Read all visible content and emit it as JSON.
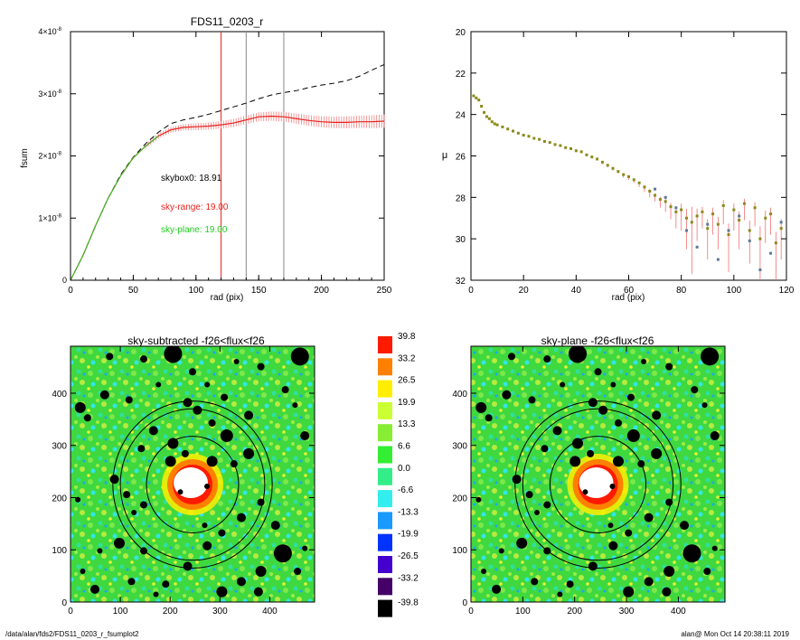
{
  "chart_data": [
    {
      "type": "line",
      "title": "FDS11_0203_r",
      "xlabel": "rad (pix)",
      "ylabel": "fsum",
      "xlim": [
        0,
        250
      ],
      "ylim": [
        0,
        4e-08
      ],
      "xticks": [
        "0",
        "50",
        "100",
        "150",
        "200",
        "250"
      ],
      "yticks": [
        {
          "base": "0",
          "exp": ""
        },
        {
          "base": "1×10",
          "exp": "-8"
        },
        {
          "base": "2×10",
          "exp": "-8"
        },
        {
          "base": "3×10",
          "exp": "-8"
        },
        {
          "base": "4×10",
          "exp": "-8"
        }
      ],
      "annotations": [
        {
          "text": "skybox0: 18.91",
          "color": "#000000"
        },
        {
          "text": "sky-range: 19.00",
          "color": "#e8231e"
        },
        {
          "text": "sky-plane: 19.00",
          "color": "#22cc22"
        }
      ],
      "vlines": [
        {
          "x": 120,
          "color": "#e8231e"
        },
        {
          "x": 140,
          "color": "#888888"
        },
        {
          "x": 170,
          "color": "#888888"
        }
      ],
      "series": [
        {
          "style": "dashed",
          "x": [
            0,
            10,
            20,
            30,
            40,
            50,
            60,
            70,
            80,
            90,
            100,
            110,
            120,
            130,
            140,
            150,
            160,
            170,
            180,
            190,
            200,
            210,
            220,
            230,
            240,
            250
          ],
          "y": [
            0,
            4e-09,
            8.8e-09,
            1.32e-08,
            1.7e-08,
            1.98e-08,
            2.2e-08,
            2.38e-08,
            2.52e-08,
            2.58e-08,
            2.62e-08,
            2.67e-08,
            2.73e-08,
            2.79e-08,
            2.85e-08,
            2.92e-08,
            2.98e-08,
            3.02e-08,
            3.05e-08,
            3.1e-08,
            3.14e-08,
            3.17e-08,
            3.21e-08,
            3.28e-08,
            3.38e-08,
            3.47e-08
          ]
        },
        {
          "style": "errorband",
          "color": "#e8231e",
          "x": [
            0,
            10,
            20,
            30,
            40,
            50,
            60,
            70,
            80,
            90,
            100,
            110,
            120,
            130,
            140,
            150,
            160,
            170,
            180,
            190,
            200,
            210,
            220,
            230,
            240,
            250
          ],
          "y": [
            0,
            4e-09,
            8.8e-09,
            1.32e-08,
            1.68e-08,
            1.97e-08,
            2.16e-08,
            2.32e-08,
            2.42e-08,
            2.46e-08,
            2.47e-08,
            2.48e-08,
            2.5e-08,
            2.53e-08,
            2.58e-08,
            2.63e-08,
            2.64e-08,
            2.63e-08,
            2.6e-08,
            2.57e-08,
            2.55e-08,
            2.54e-08,
            2.54e-08,
            2.55e-08,
            2.55e-08,
            2.56e-08
          ]
        },
        {
          "style": "solid",
          "color": "#22cc22",
          "x": [
            0,
            10,
            20,
            30,
            40,
            50,
            60,
            70
          ],
          "y": [
            0,
            4e-09,
            8.8e-09,
            1.32e-08,
            1.68e-08,
            1.97e-08,
            2.16e-08,
            2.32e-08
          ]
        }
      ]
    },
    {
      "type": "scatter",
      "xlabel": "rad (pix)",
      "ylabel": "μ",
      "xlim": [
        0,
        120
      ],
      "ylim": [
        32,
        20
      ],
      "xticks": [
        "0",
        "20",
        "40",
        "60",
        "80",
        "100",
        "120"
      ],
      "yticks": [
        "20",
        "22",
        "24",
        "26",
        "28",
        "30",
        "32"
      ],
      "series": [
        {
          "color": "#8a8a1a",
          "x": [
            1,
            2,
            3,
            4,
            5,
            6,
            7,
            8,
            9,
            10,
            12,
            14,
            16,
            18,
            20,
            22,
            24,
            26,
            28,
            30,
            32,
            34,
            36,
            38,
            40,
            42,
            44,
            46,
            48,
            50,
            52,
            54,
            56,
            58,
            60,
            62,
            64,
            66,
            68,
            70,
            72,
            74,
            76,
            78,
            80,
            82,
            84,
            86,
            88,
            90,
            92,
            94,
            96,
            98,
            100,
            102,
            104,
            106,
            108,
            110,
            112,
            114,
            116,
            118
          ],
          "y": [
            23.1,
            23.2,
            23.3,
            23.6,
            23.9,
            24.1,
            24.2,
            24.35,
            24.45,
            24.5,
            24.6,
            24.7,
            24.8,
            24.9,
            25.0,
            25.05,
            25.15,
            25.2,
            25.3,
            25.35,
            25.45,
            25.5,
            25.6,
            25.65,
            25.75,
            25.8,
            25.95,
            26.05,
            26.15,
            26.3,
            26.45,
            26.6,
            26.75,
            26.9,
            27.0,
            27.15,
            27.3,
            27.5,
            27.7,
            27.9,
            28.1,
            28.2,
            28.45,
            28.7,
            28.6,
            29.0,
            29.2,
            28.9,
            28.7,
            29.5,
            28.8,
            29.3,
            28.4,
            29.8,
            28.6,
            29.1,
            28.3,
            29.6,
            28.5,
            30.0,
            29.0,
            28.8,
            30.2,
            29.5
          ],
          "err": [
            0.05,
            0.05,
            0.05,
            0.05,
            0.05,
            0.05,
            0.05,
            0.05,
            0.05,
            0.05,
            0.05,
            0.05,
            0.05,
            0.05,
            0.05,
            0.05,
            0.05,
            0.05,
            0.05,
            0.05,
            0.05,
            0.05,
            0.05,
            0.05,
            0.05,
            0.05,
            0.05,
            0.05,
            0.05,
            0.1,
            0.1,
            0.1,
            0.1,
            0.15,
            0.15,
            0.15,
            0.2,
            0.25,
            0.3,
            0.3,
            0.4,
            0.5,
            0.6,
            0.8,
            1.0,
            1.5,
            2.5,
            1.2,
            0.8,
            1.5,
            1.0,
            1.2,
            0.9,
            1.8,
            1.0,
            1.4,
            0.8,
            1.6,
            0.9,
            2.0,
            1.2,
            1.0,
            1.8,
            1.5
          ]
        },
        {
          "color": "#5a7a99",
          "x": [
            70,
            74,
            78,
            82,
            86,
            90,
            94,
            98,
            102,
            106,
            110,
            114,
            118
          ],
          "y": [
            27.6,
            28.0,
            28.5,
            29.6,
            30.4,
            29.3,
            31.0,
            29.6,
            28.9,
            30.1,
            31.5,
            30.7,
            29.2
          ]
        }
      ]
    },
    {
      "type": "heatmap",
      "title": "sky-subtracted -f26<flux<f26",
      "xlim": [
        0,
        490
      ],
      "ylim": [
        0,
        490
      ],
      "xticks": [
        "0",
        "100",
        "200",
        "300",
        "400"
      ],
      "yticks": [
        "0",
        "100",
        "200",
        "300",
        "400"
      ],
      "annuli": [
        320,
        290,
        185
      ],
      "center": [
        245,
        225
      ]
    },
    {
      "type": "heatmap",
      "title": "sky-plane -f26<flux<f26",
      "xlim": [
        0,
        490
      ],
      "ylim": [
        0,
        490
      ],
      "xticks": [
        "0",
        "100",
        "200",
        "300",
        "400"
      ],
      "yticks": [
        "0",
        "100",
        "200",
        "300",
        "400"
      ],
      "annuli": [
        320,
        290,
        185
      ],
      "center": [
        245,
        225
      ]
    }
  ],
  "colorbar": {
    "levels": [
      "39.8",
      "33.2",
      "26.5",
      "19.9",
      "13.3",
      "6.6",
      "0.0",
      "-6.6",
      "-13.3",
      "-19.9",
      "-26.5",
      "-33.2",
      "-39.8"
    ],
    "colors": [
      "#ff1a00",
      "#ff8000",
      "#ffee00",
      "#ccff33",
      "#88ee33",
      "#33ee33",
      "#33ee88",
      "#33eeee",
      "#1a99ff",
      "#0033ff",
      "#4400cc",
      "#440066",
      "#000000"
    ]
  },
  "footer": {
    "left": "/data/alan/fds2/FDS11_0203_r_fsumplot2",
    "right": "alan@  Mon Oct 14 20:38:11 2019"
  }
}
